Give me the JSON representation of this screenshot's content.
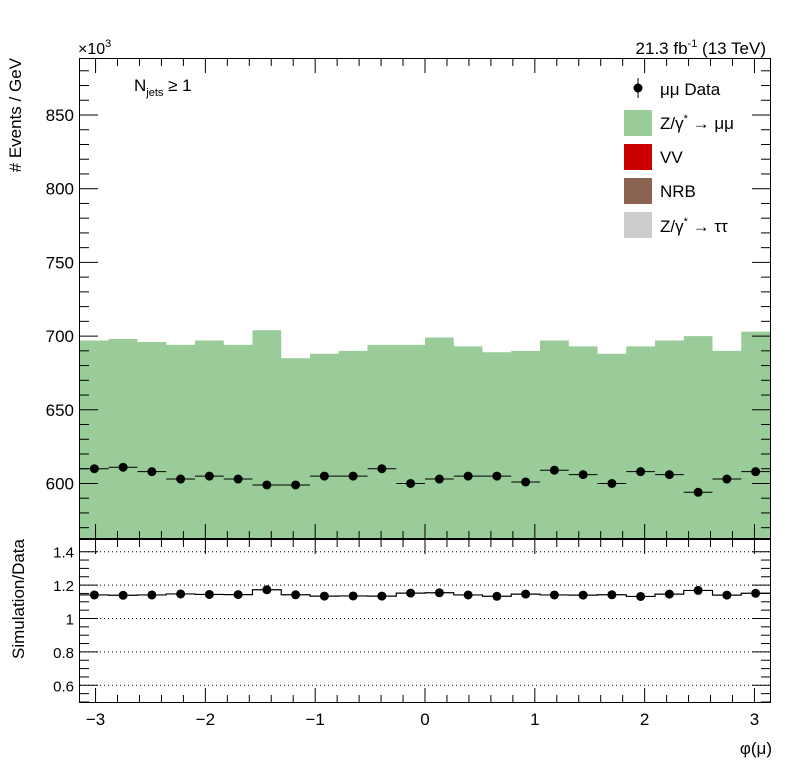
{
  "header": {
    "multiplier": "×10",
    "multiplier_exp": "3",
    "lumi_prefix": "21.3 fb",
    "lumi_exp": "-1",
    "lumi_suffix": " (13 TeV)"
  },
  "annotation": {
    "main": "N",
    "sub": "jets",
    "rest": " ≥ 1"
  },
  "legend": {
    "placement": "top-right",
    "entries": [
      {
        "label": "μμ Data",
        "style": "marker",
        "color": "#000000"
      },
      {
        "label": "Z/γ",
        "sup": "*",
        "tail": " → μμ",
        "style": "fill",
        "color": "#99cc99"
      },
      {
        "label": "VV",
        "style": "fill",
        "color": "#cc0000"
      },
      {
        "label": "NRB",
        "style": "fill",
        "color": "#8b6451"
      },
      {
        "label": "Z/γ",
        "sup": "*",
        "tail": " → ττ",
        "style": "fill",
        "color": "#cccccc"
      }
    ]
  },
  "chart_data": [
    {
      "type": "bar",
      "panel": "main",
      "ylabel": "# Events / GeV",
      "xlim": [
        -3.1416,
        3.1416
      ],
      "ylim": [
        563,
        888
      ],
      "yticks": [
        600,
        650,
        700,
        750,
        800,
        850
      ],
      "ytick_labels": [
        "600",
        "650",
        "700",
        "750",
        "800",
        "850"
      ],
      "bin_edges": [
        -3.1416,
        -2.8798,
        -2.618,
        -2.3562,
        -2.0944,
        -1.8326,
        -1.5708,
        -1.309,
        -1.0472,
        -0.7854,
        -0.5236,
        -0.2618,
        0.0,
        0.2618,
        0.5236,
        0.7854,
        1.0472,
        1.309,
        1.5708,
        1.8326,
        2.0944,
        2.3562,
        2.618,
        2.8798,
        3.1416
      ],
      "series": [
        {
          "name": "Z/γ* → μμ",
          "kind": "stacked-fill",
          "color": "#99cc99",
          "values": [
            697,
            698,
            696,
            694,
            697,
            694,
            704,
            685,
            688,
            690,
            694,
            694,
            699,
            693,
            689,
            690,
            697,
            693,
            688,
            693,
            697,
            700,
            690,
            703
          ]
        },
        {
          "name": "μμ Data",
          "kind": "points",
          "color": "#000000",
          "values": [
            610,
            611,
            608,
            603,
            605,
            603,
            599,
            599,
            605,
            605,
            610,
            600,
            603,
            605,
            605,
            601,
            609,
            606,
            600,
            608,
            606,
            594,
            603,
            608
          ]
        }
      ]
    },
    {
      "type": "scatter",
      "panel": "ratio",
      "xlabel": "φ(μ)",
      "ylabel": "Simulation/Data",
      "xlim": [
        -3.1416,
        3.1416
      ],
      "ylim": [
        0.5,
        1.47
      ],
      "grid": true,
      "yticks": [
        0.6,
        0.8,
        1.0,
        1.2,
        1.4
      ],
      "ytick_labels": [
        "0.6",
        "0.8",
        "1",
        "1.2",
        "1.4"
      ],
      "xticks": [
        -3,
        -2,
        -1,
        0,
        1,
        2,
        3
      ],
      "xtick_labels": [
        "−3",
        "−2",
        "−1",
        "0",
        "1",
        "2",
        "3"
      ],
      "values": [
        1.141,
        1.139,
        1.141,
        1.147,
        1.144,
        1.143,
        1.172,
        1.142,
        1.134,
        1.135,
        1.134,
        1.152,
        1.154,
        1.141,
        1.133,
        1.146,
        1.141,
        1.14,
        1.142,
        1.132,
        1.146,
        1.168,
        1.14,
        1.151
      ]
    }
  ]
}
